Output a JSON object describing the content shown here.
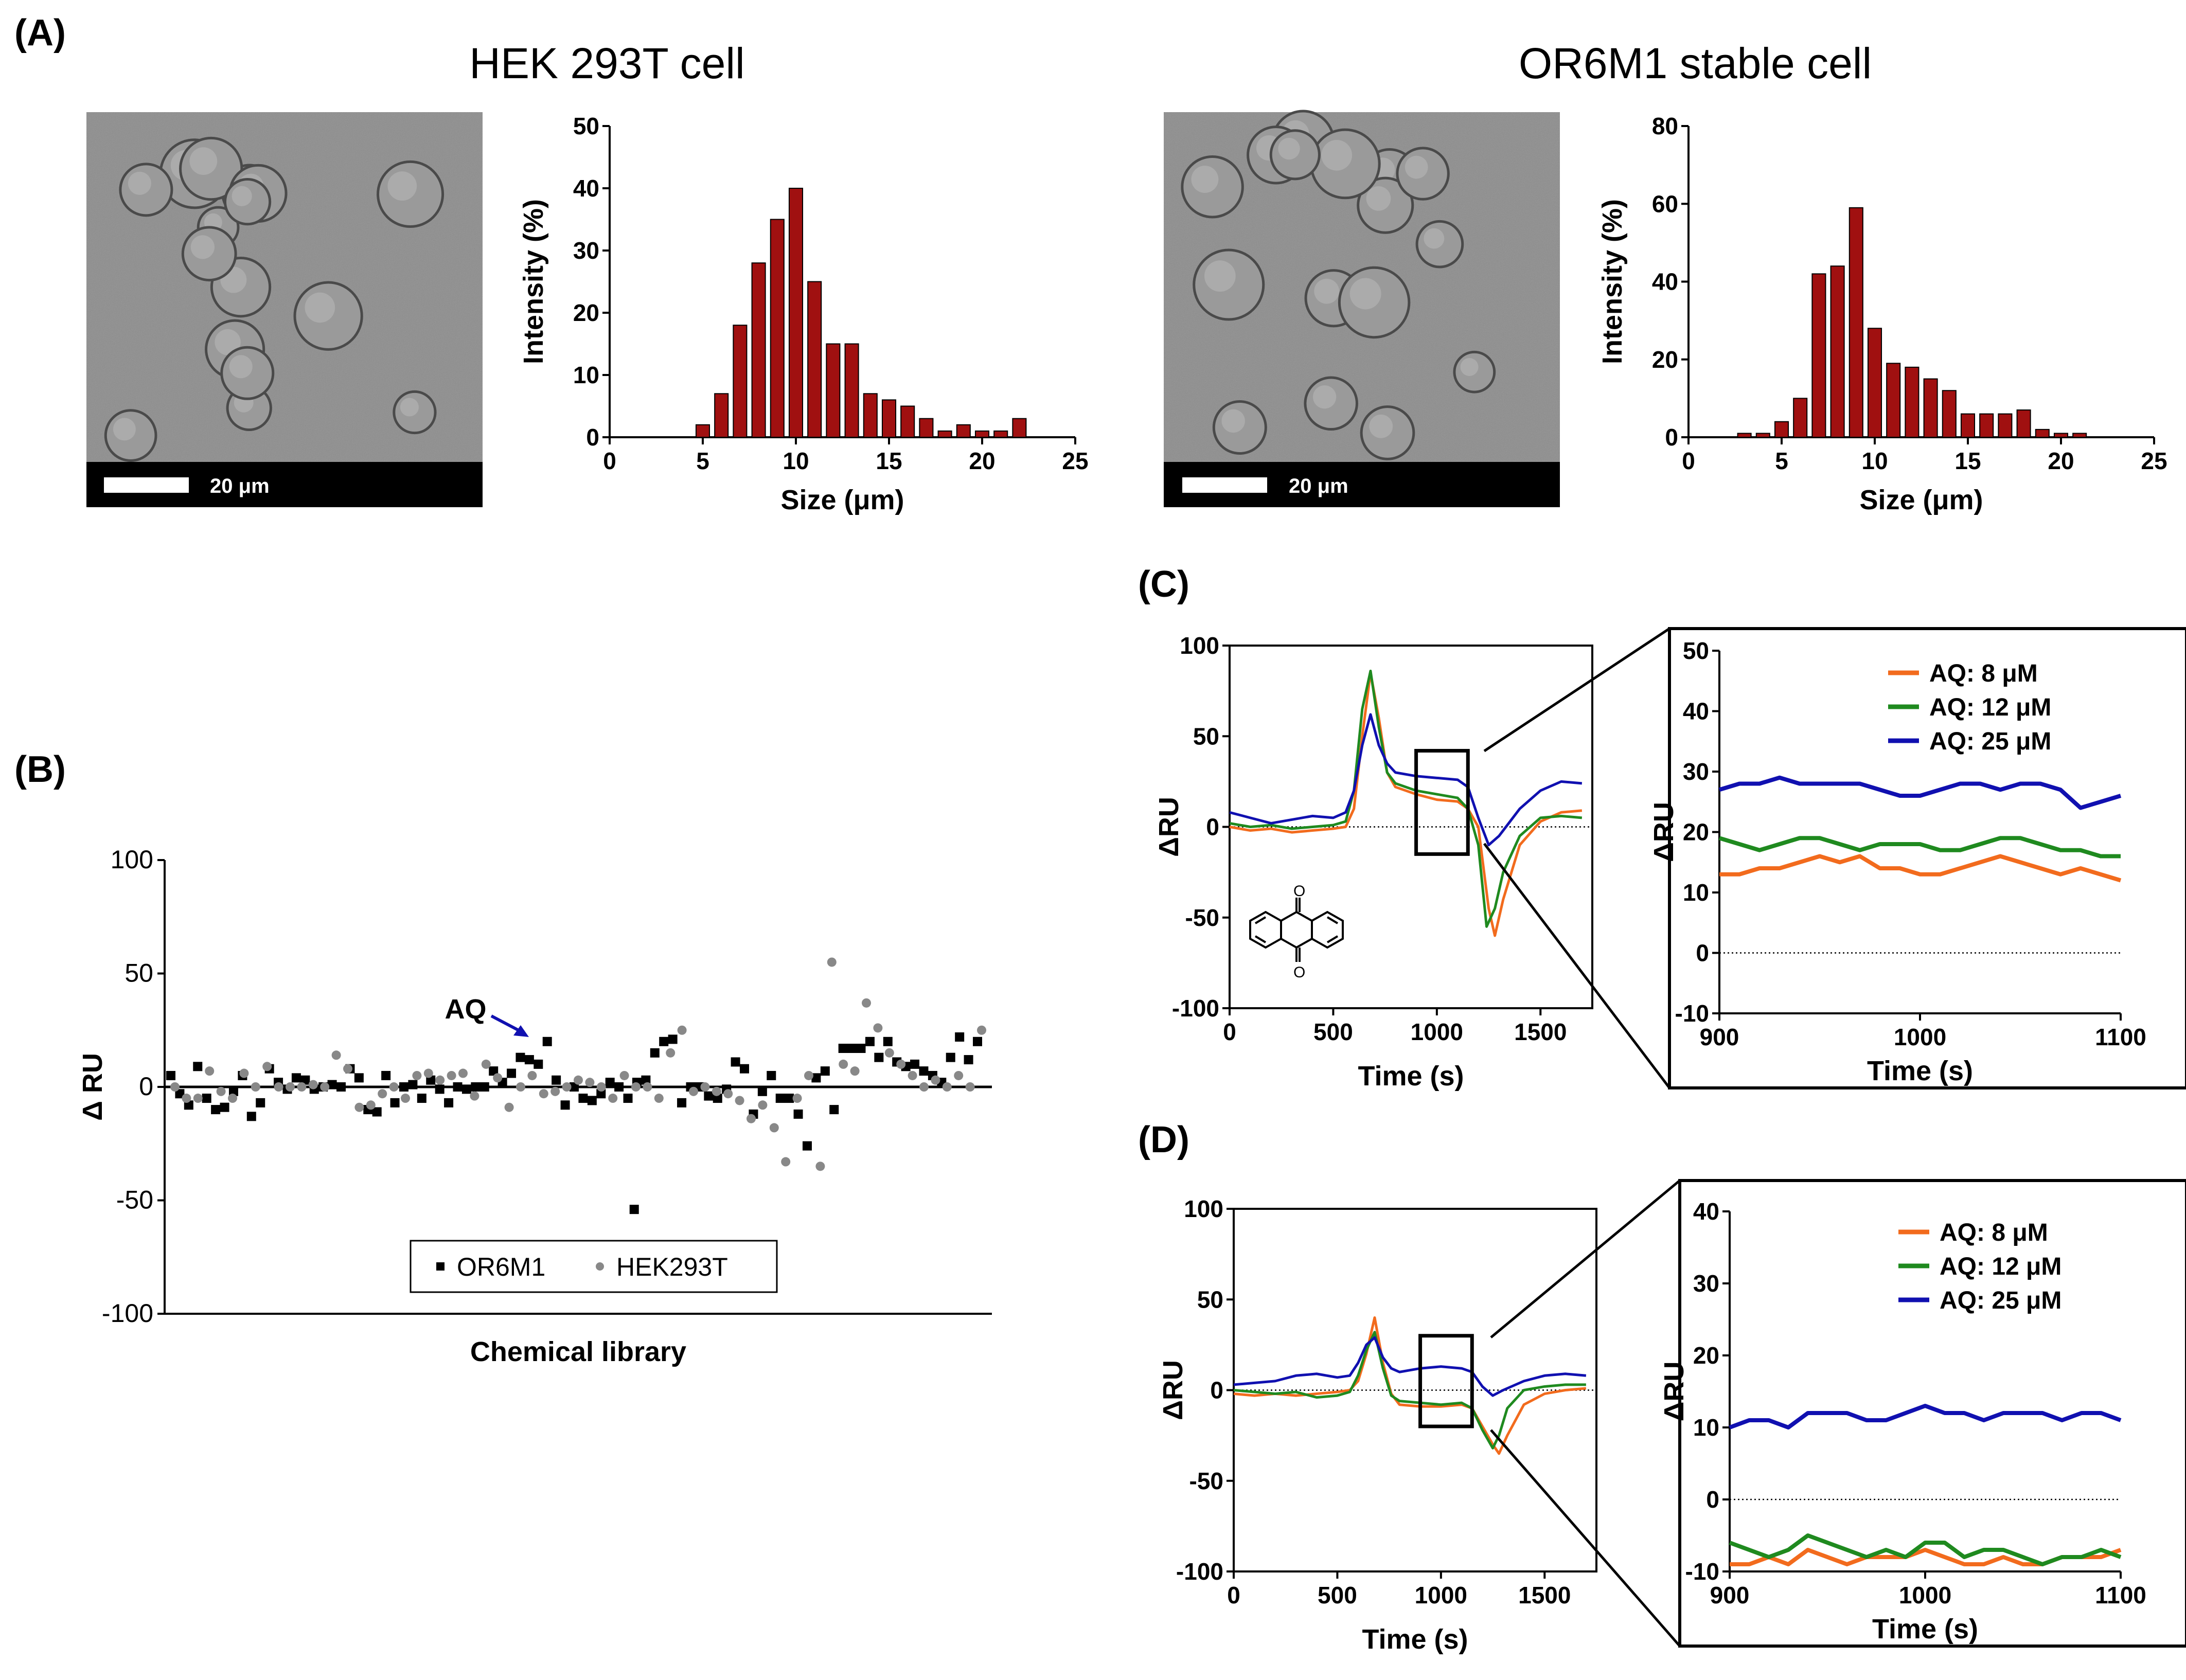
{
  "panels": {
    "a_label": "(A)",
    "b_label": "(B)",
    "c_label": "(C)",
    "d_label": "(D)"
  },
  "micrographs": {
    "hek_title": "HEK 293T cell",
    "or_title": "OR6M1 stable cell",
    "scale_label_1": "20  μm",
    "scale_label_2": "20  μm"
  },
  "inset_c_legend": [
    "AQ: 8 μM",
    "AQ: 12 μM",
    "AQ: 25 μM"
  ],
  "inset_d_legend": [
    "AQ: 8 μM",
    "AQ: 12 μM",
    "AQ: 25 μM"
  ],
  "colors": {
    "bar": "#a01010",
    "orange": "#f26b1d",
    "green": "#1f8a1f",
    "blue": "#1010b0"
  },
  "chart_data": [
    {
      "id": "hist_hek",
      "type": "bar",
      "xlabel": "Size (μm)",
      "ylabel": "Intensity (%)",
      "xlim": [
        0,
        25
      ],
      "ylim": [
        0,
        50
      ],
      "xticks": [
        0,
        5,
        10,
        15,
        20,
        25
      ],
      "yticks": [
        0,
        10,
        20,
        30,
        40,
        50
      ],
      "x": [
        5,
        6,
        7,
        8,
        9,
        10,
        11,
        12,
        13,
        14,
        15,
        16,
        17,
        18,
        19,
        20,
        21,
        22
      ],
      "values": [
        2,
        7,
        18,
        28,
        35,
        40,
        25,
        15,
        15,
        7,
        6,
        5,
        3,
        1,
        2,
        1,
        1,
        3
      ]
    },
    {
      "id": "hist_or",
      "type": "bar",
      "xlabel": "Size (μm)",
      "ylabel": "Intensity (%)",
      "xlim": [
        0,
        25
      ],
      "ylim": [
        0,
        80
      ],
      "xticks": [
        0,
        5,
        10,
        15,
        20,
        25
      ],
      "yticks": [
        0,
        20,
        40,
        60,
        80
      ],
      "x": [
        3,
        4,
        5,
        6,
        7,
        8,
        9,
        10,
        11,
        12,
        13,
        14,
        15,
        16,
        17,
        18,
        19,
        20,
        21
      ],
      "values": [
        1,
        1,
        4,
        10,
        42,
        44,
        59,
        28,
        19,
        18,
        15,
        12,
        6,
        6,
        6,
        7,
        2,
        1,
        1
      ]
    },
    {
      "id": "scatter_b",
      "type": "scatter",
      "xlabel": "Chemical library",
      "ylabel": "Δ RU",
      "ylim": [
        -100,
        100
      ],
      "yticks": [
        -100,
        -50,
        0,
        50,
        100
      ],
      "annotation": "AQ",
      "legend": [
        "OR6M1",
        "HEK293T"
      ],
      "series": [
        {
          "name": "OR6M1",
          "values": [
            5,
            -3,
            -8,
            9,
            -5,
            -10,
            -9,
            -2,
            5,
            -13,
            -7,
            8,
            2,
            -1,
            4,
            3,
            -1,
            0,
            1,
            0,
            8,
            4,
            -10,
            -11,
            5,
            -7,
            0,
            1,
            -5,
            3,
            -1,
            -7,
            0,
            -1,
            0,
            0,
            7,
            2,
            6,
            13,
            12,
            10,
            20,
            3,
            -8,
            0,
            -5,
            -6,
            -3,
            2,
            0,
            -5,
            2,
            3,
            15,
            20,
            21,
            -7,
            0,
            0,
            -4,
            -5,
            -1,
            11,
            8,
            -12,
            -2,
            5,
            -5,
            -5,
            -12,
            -26,
            4,
            7,
            -10,
            17,
            17,
            17,
            20,
            13,
            20,
            11,
            9,
            10,
            7,
            5,
            2,
            13,
            22,
            12,
            20
          ]
        },
        {
          "name": "HEK293T",
          "values": [
            0,
            -5,
            -5,
            7,
            -2,
            -5,
            6,
            0,
            9,
            0,
            0,
            0,
            1,
            0,
            14,
            8,
            -9,
            -8,
            -3,
            0,
            -5,
            5,
            6,
            3,
            5,
            6,
            -4,
            10,
            4,
            -9,
            0,
            5,
            -3,
            -2,
            0,
            3,
            2,
            0,
            -5,
            5,
            0,
            0,
            -5,
            15,
            25,
            -2,
            0,
            -2,
            -3,
            -6,
            -14,
            -8,
            -18,
            -33,
            -5,
            5,
            -35,
            55,
            10,
            7,
            37,
            26,
            15,
            10,
            5,
            0,
            3,
            0,
            5,
            0,
            25
          ]
        }
      ],
      "outlier_point": {
        "x_index": 47,
        "value": -54
      }
    },
    {
      "id": "trace_c",
      "type": "line",
      "xlabel": "Time (s)",
      "ylabel": "ΔRU",
      "xlim": [
        0,
        1750
      ],
      "ylim": [
        -100,
        100
      ],
      "xticks": [
        0,
        500,
        1000,
        1500
      ],
      "yticks": [
        -100,
        -50,
        0,
        50,
        100
      ],
      "series": [
        {
          "name": "AQ: 8 μM",
          "x": [
            0,
            100,
            200,
            300,
            400,
            500,
            560,
            600,
            640,
            680,
            720,
            760,
            800,
            900,
            1000,
            1100,
            1150,
            1200,
            1250,
            1280,
            1320,
            1400,
            1500,
            1600,
            1700
          ],
          "values": [
            0,
            -2,
            -1,
            -3,
            -2,
            -1,
            0,
            10,
            50,
            85,
            60,
            30,
            22,
            18,
            15,
            14,
            10,
            0,
            -45,
            -60,
            -40,
            -10,
            3,
            8,
            9
          ]
        },
        {
          "name": "AQ: 12 μM",
          "x": [
            0,
            100,
            200,
            300,
            400,
            500,
            560,
            600,
            640,
            680,
            720,
            760,
            800,
            900,
            1000,
            1100,
            1150,
            1200,
            1240,
            1280,
            1320,
            1400,
            1500,
            1600,
            1700
          ],
          "values": [
            2,
            0,
            1,
            -1,
            0,
            1,
            3,
            20,
            65,
            86,
            55,
            30,
            24,
            20,
            18,
            16,
            10,
            -10,
            -55,
            -45,
            -25,
            -5,
            5,
            6,
            5
          ]
        },
        {
          "name": "AQ: 25 μM",
          "x": [
            0,
            100,
            200,
            300,
            400,
            500,
            560,
            600,
            640,
            680,
            720,
            760,
            800,
            900,
            1000,
            1100,
            1150,
            1200,
            1250,
            1300,
            1400,
            1500,
            1600,
            1700
          ],
          "values": [
            8,
            5,
            2,
            4,
            6,
            5,
            8,
            20,
            45,
            62,
            45,
            35,
            30,
            28,
            27,
            26,
            22,
            5,
            -10,
            -5,
            10,
            20,
            25,
            24
          ]
        }
      ]
    },
    {
      "id": "inset_c",
      "type": "line",
      "xlabel": "Time (s)",
      "ylabel": "ΔRU",
      "xlim": [
        900,
        1100
      ],
      "ylim": [
        -10,
        50
      ],
      "xticks": [
        900,
        1000,
        1100
      ],
      "yticks": [
        -10,
        0,
        10,
        20,
        30,
        40,
        50
      ],
      "series": [
        {
          "name": "AQ: 8 μM",
          "x": [
            900,
            910,
            920,
            930,
            940,
            950,
            960,
            970,
            980,
            990,
            1000,
            1010,
            1020,
            1030,
            1040,
            1050,
            1060,
            1070,
            1080,
            1090,
            1100
          ],
          "values": [
            13,
            13,
            14,
            14,
            15,
            16,
            15,
            16,
            14,
            14,
            13,
            13,
            14,
            15,
            16,
            15,
            14,
            13,
            14,
            13,
            12
          ]
        },
        {
          "name": "AQ: 12 μM",
          "x": [
            900,
            910,
            920,
            930,
            940,
            950,
            960,
            970,
            980,
            990,
            1000,
            1010,
            1020,
            1030,
            1040,
            1050,
            1060,
            1070,
            1080,
            1090,
            1100
          ],
          "values": [
            19,
            18,
            17,
            18,
            19,
            19,
            18,
            17,
            18,
            18,
            18,
            17,
            17,
            18,
            19,
            19,
            18,
            17,
            17,
            16,
            16
          ]
        },
        {
          "name": "AQ: 25 μM",
          "x": [
            900,
            910,
            920,
            930,
            940,
            950,
            960,
            970,
            980,
            990,
            1000,
            1010,
            1020,
            1030,
            1040,
            1050,
            1060,
            1070,
            1080,
            1090,
            1100
          ],
          "values": [
            27,
            28,
            28,
            29,
            28,
            28,
            28,
            28,
            27,
            26,
            26,
            27,
            28,
            28,
            27,
            28,
            28,
            27,
            24,
            25,
            26
          ]
        }
      ]
    },
    {
      "id": "trace_d",
      "type": "line",
      "xlabel": "Time (s)",
      "ylabel": "ΔRU",
      "xlim": [
        0,
        1750
      ],
      "ylim": [
        -100,
        100
      ],
      "xticks": [
        0,
        500,
        1000,
        1500
      ],
      "yticks": [
        -100,
        -50,
        0,
        50,
        100
      ],
      "series": [
        {
          "name": "AQ: 8 μM",
          "x": [
            0,
            100,
            200,
            300,
            400,
            500,
            560,
            600,
            640,
            680,
            720,
            760,
            800,
            900,
            1000,
            1100,
            1150,
            1200,
            1250,
            1280,
            1320,
            1400,
            1500,
            1600,
            1700
          ],
          "values": [
            -2,
            -3,
            -2,
            -3,
            -2,
            -1,
            0,
            5,
            20,
            40,
            15,
            -2,
            -8,
            -9,
            -9,
            -8,
            -10,
            -20,
            -30,
            -35,
            -25,
            -8,
            -2,
            0,
            1
          ]
        },
        {
          "name": "AQ: 12 μM",
          "x": [
            0,
            100,
            200,
            300,
            400,
            500,
            560,
            600,
            640,
            680,
            720,
            760,
            800,
            900,
            1000,
            1100,
            1150,
            1200,
            1250,
            1280,
            1320,
            1400,
            1500,
            1600,
            1700
          ],
          "values": [
            0,
            -1,
            -2,
            -1,
            -4,
            -3,
            -1,
            8,
            22,
            32,
            12,
            -3,
            -6,
            -7,
            -8,
            -7,
            -10,
            -22,
            -32,
            -25,
            -10,
            0,
            2,
            3,
            3
          ]
        },
        {
          "name": "AQ: 25 μM",
          "x": [
            0,
            100,
            200,
            300,
            400,
            500,
            560,
            600,
            640,
            680,
            720,
            760,
            800,
            900,
            1000,
            1100,
            1150,
            1200,
            1250,
            1300,
            1400,
            1500,
            1600,
            1700
          ],
          "values": [
            3,
            4,
            5,
            8,
            9,
            7,
            8,
            15,
            25,
            29,
            18,
            12,
            10,
            12,
            13,
            12,
            10,
            2,
            -3,
            0,
            5,
            8,
            9,
            8
          ]
        }
      ]
    },
    {
      "id": "inset_d",
      "type": "line",
      "xlabel": "Time (s)",
      "ylabel": "ΔRU",
      "xlim": [
        900,
        1100
      ],
      "ylim": [
        -10,
        40
      ],
      "xticks": [
        900,
        1000,
        1100
      ],
      "yticks": [
        -10,
        0,
        10,
        20,
        30,
        40
      ],
      "series": [
        {
          "name": "AQ: 8 μM",
          "x": [
            900,
            910,
            920,
            930,
            940,
            950,
            960,
            970,
            980,
            990,
            1000,
            1010,
            1020,
            1030,
            1040,
            1050,
            1060,
            1070,
            1080,
            1090,
            1100
          ],
          "values": [
            -9,
            -9,
            -8,
            -9,
            -7,
            -8,
            -9,
            -8,
            -8,
            -8,
            -7,
            -8,
            -9,
            -9,
            -8,
            -9,
            -9,
            -8,
            -8,
            -8,
            -7
          ]
        },
        {
          "name": "AQ: 12 μM",
          "x": [
            900,
            910,
            920,
            930,
            940,
            950,
            960,
            970,
            980,
            990,
            1000,
            1010,
            1020,
            1030,
            1040,
            1050,
            1060,
            1070,
            1080,
            1090,
            1100
          ],
          "values": [
            -6,
            -7,
            -8,
            -7,
            -5,
            -6,
            -7,
            -8,
            -7,
            -8,
            -6,
            -6,
            -8,
            -7,
            -7,
            -8,
            -9,
            -8,
            -8,
            -7,
            -8
          ]
        },
        {
          "name": "AQ: 25 μM",
          "x": [
            900,
            910,
            920,
            930,
            940,
            950,
            960,
            970,
            980,
            990,
            1000,
            1010,
            1020,
            1030,
            1040,
            1050,
            1060,
            1070,
            1080,
            1090,
            1100
          ],
          "values": [
            10,
            11,
            11,
            10,
            12,
            12,
            12,
            11,
            11,
            12,
            13,
            12,
            12,
            11,
            12,
            12,
            12,
            11,
            12,
            12,
            11
          ]
        }
      ]
    }
  ]
}
